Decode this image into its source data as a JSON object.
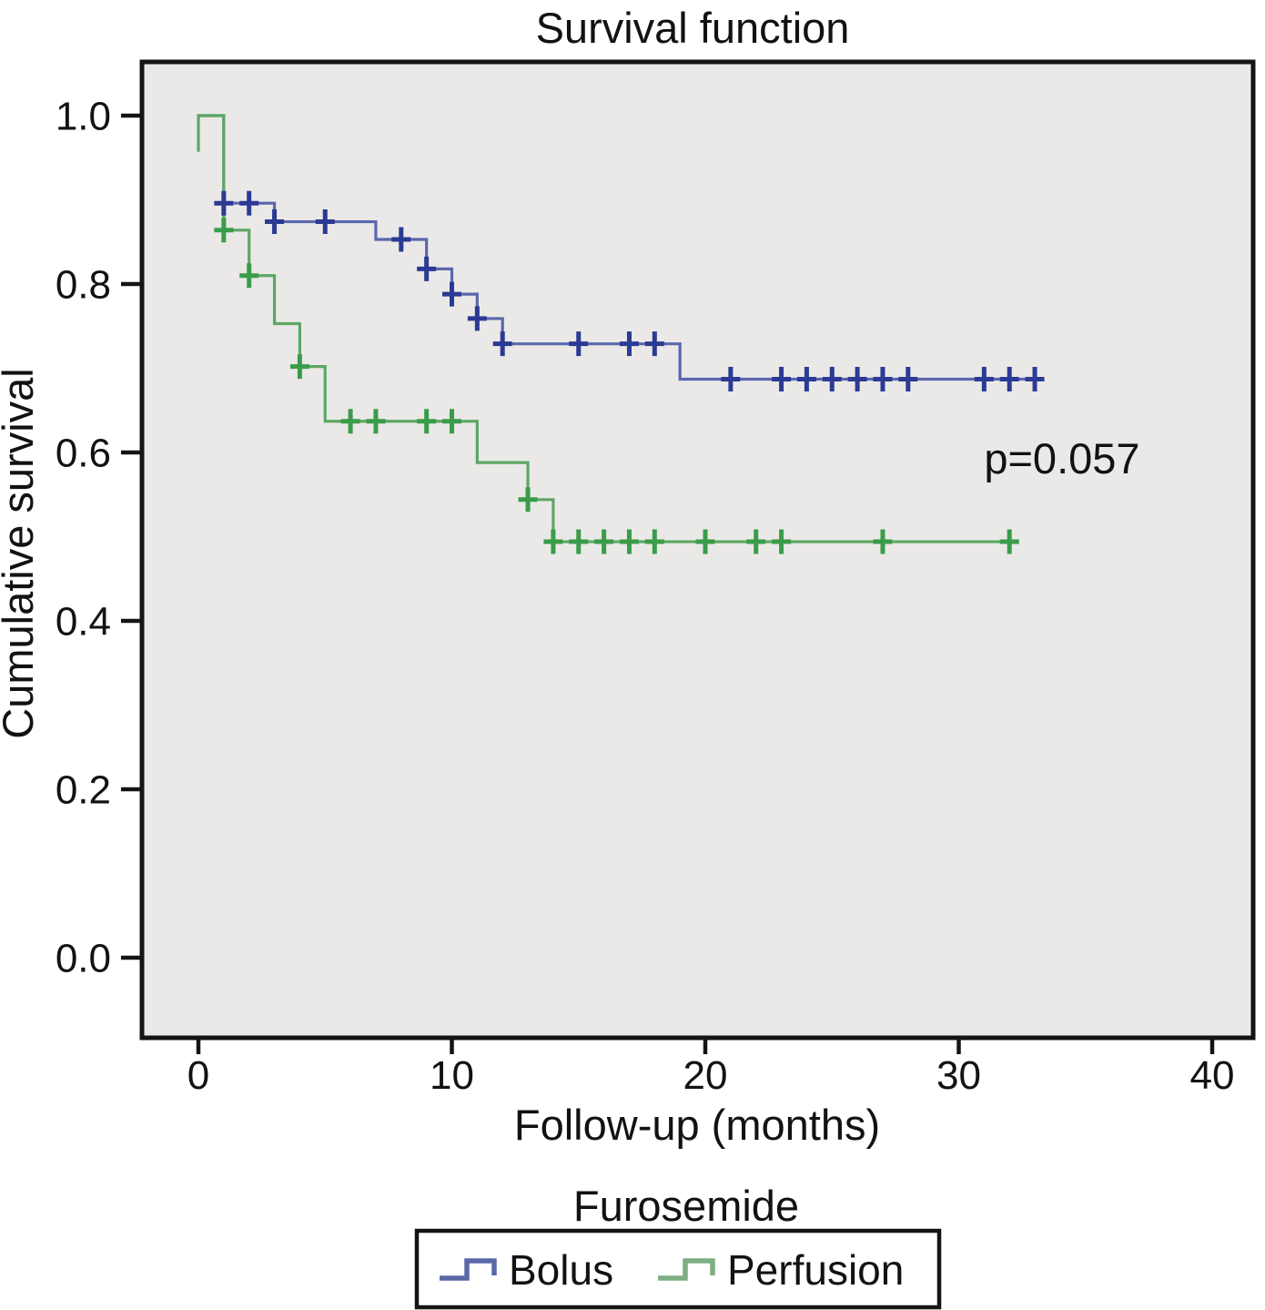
{
  "chart_data": {
    "type": "line",
    "subtype": "kaplan-meier-step",
    "title": "Survival function",
    "xlabel": "Follow-up (months)",
    "ylabel": "Cumulative survival",
    "x_ticks": [
      {
        "label": "0",
        "value": 0
      },
      {
        "label": "10",
        "value": 10
      },
      {
        "label": "20",
        "value": 20
      },
      {
        "label": "30",
        "value": 30
      },
      {
        "label": "40",
        "value": 40
      }
    ],
    "y_ticks": [
      {
        "label": "1.0",
        "value": 1.0
      },
      {
        "label": "0.8",
        "value": 0.8
      },
      {
        "label": "0.6",
        "value": 0.6
      },
      {
        "label": "0.4",
        "value": 0.4
      },
      {
        "label": "0.2",
        "value": 0.2
      },
      {
        "label": "0.0",
        "value": 0.0
      }
    ],
    "xlim": [
      -2.2,
      41.6
    ],
    "ylim": [
      -0.095,
      1.064
    ],
    "grid": false,
    "plot_bg": "#eae9e7",
    "frame_color": "#141414",
    "annotation": {
      "text": "p=0.057",
      "x_month": 31.0,
      "y_survival": 0.575
    },
    "series": [
      {
        "name": "Bolus",
        "line_color": "#5b67ad",
        "censor_color": "#2b3a94",
        "legend_color": "#5a68a8",
        "steps": [
          [
            0,
            1.0
          ],
          [
            1,
            0.896
          ],
          [
            3,
            0.874
          ],
          [
            7,
            0.853
          ],
          [
            9,
            0.818
          ],
          [
            10,
            0.788
          ],
          [
            11,
            0.759
          ],
          [
            12,
            0.729
          ],
          [
            19,
            0.687
          ]
        ],
        "end_x": 33.2,
        "censors": [
          [
            1,
            0.896
          ],
          [
            2,
            0.896
          ],
          [
            3,
            0.874
          ],
          [
            5,
            0.874
          ],
          [
            8,
            0.853
          ],
          [
            9,
            0.818
          ],
          [
            10,
            0.788
          ],
          [
            11,
            0.759
          ],
          [
            12,
            0.729
          ],
          [
            15,
            0.729
          ],
          [
            17,
            0.729
          ],
          [
            18,
            0.729
          ],
          [
            21,
            0.687
          ],
          [
            23,
            0.687
          ],
          [
            24,
            0.687
          ],
          [
            25,
            0.687
          ],
          [
            26,
            0.687
          ],
          [
            27,
            0.687
          ],
          [
            28,
            0.687
          ],
          [
            31,
            0.687
          ],
          [
            32,
            0.687
          ],
          [
            33,
            0.687
          ]
        ]
      },
      {
        "name": "Perfusion",
        "line_color": "#5da764",
        "censor_color": "#3a9c49",
        "legend_color": "#7dae82",
        "start_tail": [
          0,
          0.957
        ],
        "steps": [
          [
            0,
            1.0
          ],
          [
            1,
            0.864
          ],
          [
            2,
            0.81
          ],
          [
            3,
            0.753
          ],
          [
            4,
            0.702
          ],
          [
            5,
            0.637
          ],
          [
            11,
            0.588
          ],
          [
            13,
            0.544
          ],
          [
            14,
            0.494
          ]
        ],
        "end_x": 32.2,
        "censors": [
          [
            1,
            0.864
          ],
          [
            2,
            0.81
          ],
          [
            4,
            0.702
          ],
          [
            6,
            0.637
          ],
          [
            7,
            0.637
          ],
          [
            9,
            0.637
          ],
          [
            10,
            0.637
          ],
          [
            13,
            0.544
          ],
          [
            14,
            0.494
          ],
          [
            15,
            0.494
          ],
          [
            16,
            0.494
          ],
          [
            17,
            0.494
          ],
          [
            18,
            0.494
          ],
          [
            20,
            0.494
          ],
          [
            22,
            0.494
          ],
          [
            23,
            0.494
          ],
          [
            27,
            0.494
          ],
          [
            32,
            0.494
          ]
        ]
      }
    ],
    "legend": {
      "title": "Furosemide",
      "position": "bottom",
      "entries": [
        "Bolus",
        "Perfusion"
      ]
    }
  }
}
